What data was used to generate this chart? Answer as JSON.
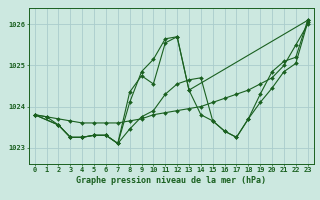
{
  "background_color": "#cce8e0",
  "grid_color": "#aacccc",
  "line_color": "#1a6020",
  "xlabel": "Graphe pression niveau de la mer (hPa)",
  "ylim": [
    1022.6,
    1026.4
  ],
  "xlim": [
    -0.5,
    23.5
  ],
  "yticks": [
    1023,
    1024,
    1025,
    1026
  ],
  "xticks": [
    0,
    1,
    2,
    3,
    4,
    5,
    6,
    7,
    8,
    9,
    10,
    11,
    12,
    13,
    14,
    15,
    16,
    17,
    18,
    19,
    20,
    21,
    22,
    23
  ],
  "series": [
    {
      "x": [
        0,
        1,
        2,
        3,
        4,
        5,
        6,
        7,
        8,
        9,
        10,
        11,
        12,
        13,
        14,
        15,
        16,
        17,
        18,
        19,
        20,
        21,
        22,
        23
      ],
      "y": [
        1023.8,
        1023.75,
        1023.7,
        1023.65,
        1023.6,
        1023.6,
        1023.6,
        1023.6,
        1023.65,
        1023.7,
        1023.8,
        1023.85,
        1023.9,
        1023.95,
        1024.0,
        1024.1,
        1024.2,
        1024.3,
        1024.4,
        1024.55,
        1024.7,
        1025.0,
        1025.5,
        1026.0
      ]
    },
    {
      "x": [
        0,
        1,
        2,
        3,
        4,
        5,
        6,
        7,
        8,
        9,
        10,
        11,
        12,
        13,
        14,
        15,
        16,
        17,
        18,
        19,
        20,
        21,
        22,
        23
      ],
      "y": [
        1023.8,
        1023.75,
        1023.55,
        1023.25,
        1023.25,
        1023.3,
        1023.3,
        1023.1,
        1024.1,
        1024.85,
        1025.15,
        1025.65,
        1025.7,
        1024.4,
        1023.8,
        1023.65,
        1023.4,
        1023.25,
        1023.7,
        1024.3,
        1024.85,
        1025.1,
        1025.2,
        1026.1
      ]
    },
    {
      "x": [
        0,
        2,
        3,
        4,
        5,
        6,
        7,
        8,
        9,
        10,
        11,
        12,
        13,
        23
      ],
      "y": [
        1023.8,
        1023.55,
        1023.25,
        1023.25,
        1023.3,
        1023.3,
        1023.1,
        1024.35,
        1024.75,
        1024.55,
        1025.55,
        1025.7,
        1024.4,
        1026.1
      ]
    },
    {
      "x": [
        0,
        2,
        3,
        4,
        5,
        6,
        7,
        8,
        9,
        10,
        11,
        12,
        13,
        14,
        15,
        16,
        17,
        18,
        19,
        20,
        21,
        22,
        23
      ],
      "y": [
        1023.8,
        1023.55,
        1023.25,
        1023.25,
        1023.3,
        1023.3,
        1023.1,
        1023.45,
        1023.75,
        1023.9,
        1024.3,
        1024.55,
        1024.65,
        1024.7,
        1023.65,
        1023.4,
        1023.25,
        1023.7,
        1024.1,
        1024.45,
        1024.85,
        1025.05,
        1026.05
      ]
    }
  ]
}
